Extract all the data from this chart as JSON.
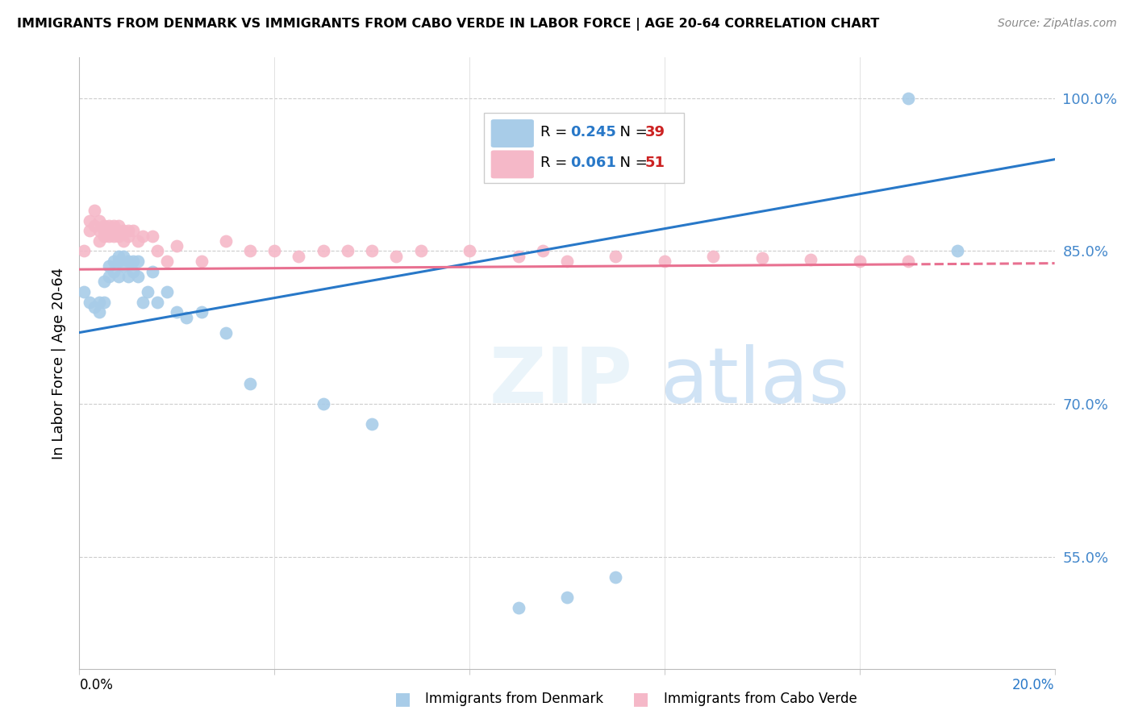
{
  "title": "IMMIGRANTS FROM DENMARK VS IMMIGRANTS FROM CABO VERDE IN LABOR FORCE | AGE 20-64 CORRELATION CHART",
  "source": "Source: ZipAtlas.com",
  "ylabel": "In Labor Force | Age 20-64",
  "yticks": [
    0.55,
    0.7,
    0.85,
    1.0
  ],
  "ytick_labels": [
    "55.0%",
    "70.0%",
    "85.0%",
    "100.0%"
  ],
  "xlim": [
    0.0,
    0.2
  ],
  "ylim": [
    0.44,
    1.04
  ],
  "denmark_R": 0.245,
  "denmark_N": 39,
  "caboverde_R": 0.061,
  "caboverde_N": 51,
  "denmark_color": "#a8cce8",
  "caboverde_color": "#f5b8c8",
  "denmark_line_color": "#2878c8",
  "caboverde_line_color": "#e87090",
  "denmark_scatter_x": [
    0.001,
    0.002,
    0.003,
    0.004,
    0.004,
    0.005,
    0.005,
    0.006,
    0.006,
    0.007,
    0.007,
    0.008,
    0.008,
    0.008,
    0.009,
    0.009,
    0.01,
    0.01,
    0.011,
    0.011,
    0.012,
    0.012,
    0.013,
    0.014,
    0.015,
    0.016,
    0.018,
    0.02,
    0.022,
    0.025,
    0.03,
    0.035,
    0.05,
    0.06,
    0.09,
    0.1,
    0.11,
    0.17,
    0.18
  ],
  "denmark_scatter_y": [
    0.81,
    0.8,
    0.795,
    0.8,
    0.79,
    0.82,
    0.8,
    0.835,
    0.825,
    0.84,
    0.83,
    0.845,
    0.84,
    0.825,
    0.845,
    0.835,
    0.84,
    0.825,
    0.84,
    0.83,
    0.84,
    0.825,
    0.8,
    0.81,
    0.83,
    0.8,
    0.81,
    0.79,
    0.785,
    0.79,
    0.77,
    0.72,
    0.7,
    0.68,
    0.5,
    0.51,
    0.53,
    1.0,
    0.85
  ],
  "caboverde_scatter_x": [
    0.001,
    0.002,
    0.002,
    0.003,
    0.003,
    0.004,
    0.004,
    0.004,
    0.005,
    0.005,
    0.005,
    0.006,
    0.006,
    0.006,
    0.007,
    0.007,
    0.007,
    0.008,
    0.008,
    0.009,
    0.009,
    0.01,
    0.01,
    0.011,
    0.012,
    0.013,
    0.015,
    0.016,
    0.018,
    0.02,
    0.025,
    0.03,
    0.035,
    0.04,
    0.045,
    0.05,
    0.055,
    0.06,
    0.065,
    0.07,
    0.08,
    0.09,
    0.095,
    0.1,
    0.11,
    0.12,
    0.13,
    0.14,
    0.15,
    0.16,
    0.17
  ],
  "caboverde_scatter_y": [
    0.85,
    0.87,
    0.88,
    0.875,
    0.89,
    0.88,
    0.87,
    0.86,
    0.875,
    0.87,
    0.865,
    0.875,
    0.87,
    0.865,
    0.875,
    0.87,
    0.865,
    0.875,
    0.865,
    0.87,
    0.86,
    0.87,
    0.865,
    0.87,
    0.86,
    0.865,
    0.865,
    0.85,
    0.84,
    0.855,
    0.84,
    0.86,
    0.85,
    0.85,
    0.845,
    0.85,
    0.85,
    0.85,
    0.845,
    0.85,
    0.85,
    0.845,
    0.85,
    0.84,
    0.845,
    0.84,
    0.845,
    0.843,
    0.842,
    0.84,
    0.84
  ]
}
